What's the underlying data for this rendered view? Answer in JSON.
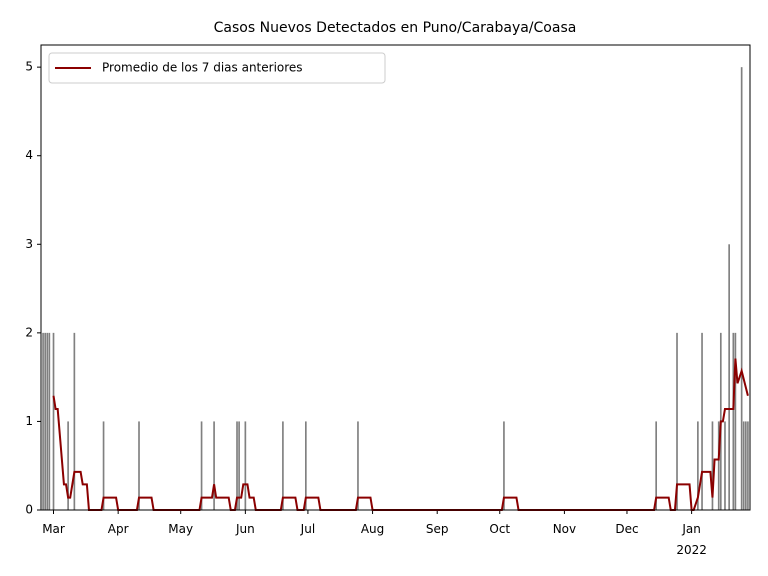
{
  "chart_data": {
    "type": "bar",
    "title": "Casos Nuevos Detectados en Puno/Carabaya/Coasa",
    "xlim": [
      "2021-02-23",
      "2022-01-29"
    ],
    "xticks": [
      {
        "value": "2021-03-01",
        "label": "Mar"
      },
      {
        "value": "2021-04-01",
        "label": "Apr"
      },
      {
        "value": "2021-05-01",
        "label": "May"
      },
      {
        "value": "2021-06-01",
        "label": "Jun"
      },
      {
        "value": "2021-07-01",
        "label": "Jul"
      },
      {
        "value": "2021-08-01",
        "label": "Aug"
      },
      {
        "value": "2021-09-01",
        "label": "Sep"
      },
      {
        "value": "2021-10-01",
        "label": "Oct"
      },
      {
        "value": "2021-11-01",
        "label": "Nov"
      },
      {
        "value": "2021-12-01",
        "label": "Dec"
      },
      {
        "value": "2022-01-01",
        "label": "Jan\n2022"
      }
    ],
    "ylim": [
      0,
      5.25
    ],
    "yticks": [
      0,
      1,
      2,
      3,
      4,
      5
    ],
    "legend": "upper left",
    "series": [
      {
        "type": "bar",
        "color": "#808080",
        "x": [
          "2021-02-24",
          "2021-02-25",
          "2021-02-26",
          "2021-02-27",
          "2021-03-01",
          "2021-03-08",
          "2021-03-11",
          "2021-03-25",
          "2021-04-11",
          "2021-05-11",
          "2021-05-17",
          "2021-05-28",
          "2021-05-29",
          "2021-06-01",
          "2021-06-19",
          "2021-06-30",
          "2021-07-25",
          "2021-10-03",
          "2021-12-15",
          "2021-12-25",
          "2022-01-04",
          "2022-01-06",
          "2022-01-11",
          "2022-01-14",
          "2022-01-15",
          "2022-01-17",
          "2022-01-19",
          "2022-01-21",
          "2022-01-22",
          "2022-01-25",
          "2022-01-26",
          "2022-01-27",
          "2022-01-28"
        ],
        "values": [
          2,
          2,
          2,
          2,
          2,
          1,
          2,
          1,
          1,
          1,
          1,
          1,
          1,
          1,
          1,
          1,
          1,
          1,
          1,
          2,
          1,
          2,
          1,
          1,
          2,
          1,
          3,
          2,
          2,
          5,
          1,
          1,
          1
        ]
      },
      {
        "type": "line",
        "name": "Promedio de los 7 dias anteriores",
        "color": "#8b0000",
        "x": [
          "2021-03-01",
          "2021-03-02",
          "2021-03-03",
          "2021-03-06",
          "2021-03-07",
          "2021-03-08",
          "2021-03-09",
          "2021-03-11",
          "2021-03-14",
          "2021-03-15",
          "2021-03-17",
          "2021-03-18",
          "2021-03-24",
          "2021-03-25",
          "2021-03-31",
          "2021-04-01",
          "2021-04-10",
          "2021-04-11",
          "2021-04-17",
          "2021-04-18",
          "2021-05-10",
          "2021-05-11",
          "2021-05-16",
          "2021-05-17",
          "2021-05-18",
          "2021-05-24",
          "2021-05-25",
          "2021-05-27",
          "2021-05-28",
          "2021-05-30",
          "2021-05-31",
          "2021-06-02",
          "2021-06-03",
          "2021-06-05",
          "2021-06-06",
          "2021-06-18",
          "2021-06-19",
          "2021-06-25",
          "2021-06-26",
          "2021-06-29",
          "2021-06-30",
          "2021-07-06",
          "2021-07-07",
          "2021-07-24",
          "2021-07-25",
          "2021-07-31",
          "2021-08-01",
          "2021-10-02",
          "2021-10-03",
          "2021-10-09",
          "2021-10-10",
          "2021-12-14",
          "2021-12-15",
          "2021-12-21",
          "2021-12-22",
          "2021-12-24",
          "2021-12-25",
          "2021-12-31",
          "2022-01-01",
          "2022-01-02",
          "2022-01-04",
          "2022-01-06",
          "2022-01-10",
          "2022-01-11",
          "2022-01-12",
          "2022-01-14",
          "2022-01-15",
          "2022-01-16",
          "2022-01-17",
          "2022-01-21",
          "2022-01-22",
          "2022-01-23",
          "2022-01-25",
          "2022-01-28"
        ],
        "values": [
          1.29,
          1.14,
          1.14,
          0.29,
          0.29,
          0.14,
          0.14,
          0.43,
          0.43,
          0.29,
          0.29,
          0,
          0,
          0.14,
          0.14,
          0,
          0,
          0.14,
          0.14,
          0,
          0,
          0.14,
          0.14,
          0.29,
          0.14,
          0.14,
          0,
          0,
          0.14,
          0.14,
          0.29,
          0.29,
          0.14,
          0.14,
          0,
          0,
          0.14,
          0.14,
          0,
          0,
          0.14,
          0.14,
          0,
          0,
          0.14,
          0.14,
          0,
          0,
          0.14,
          0.14,
          0,
          0,
          0.14,
          0.14,
          0,
          0,
          0.29,
          0.29,
          0,
          0,
          0.14,
          0.43,
          0.43,
          0.14,
          0.57,
          0.57,
          1.0,
          1.0,
          1.14,
          1.14,
          1.71,
          1.43,
          1.57,
          1.29
        ]
      }
    ]
  }
}
